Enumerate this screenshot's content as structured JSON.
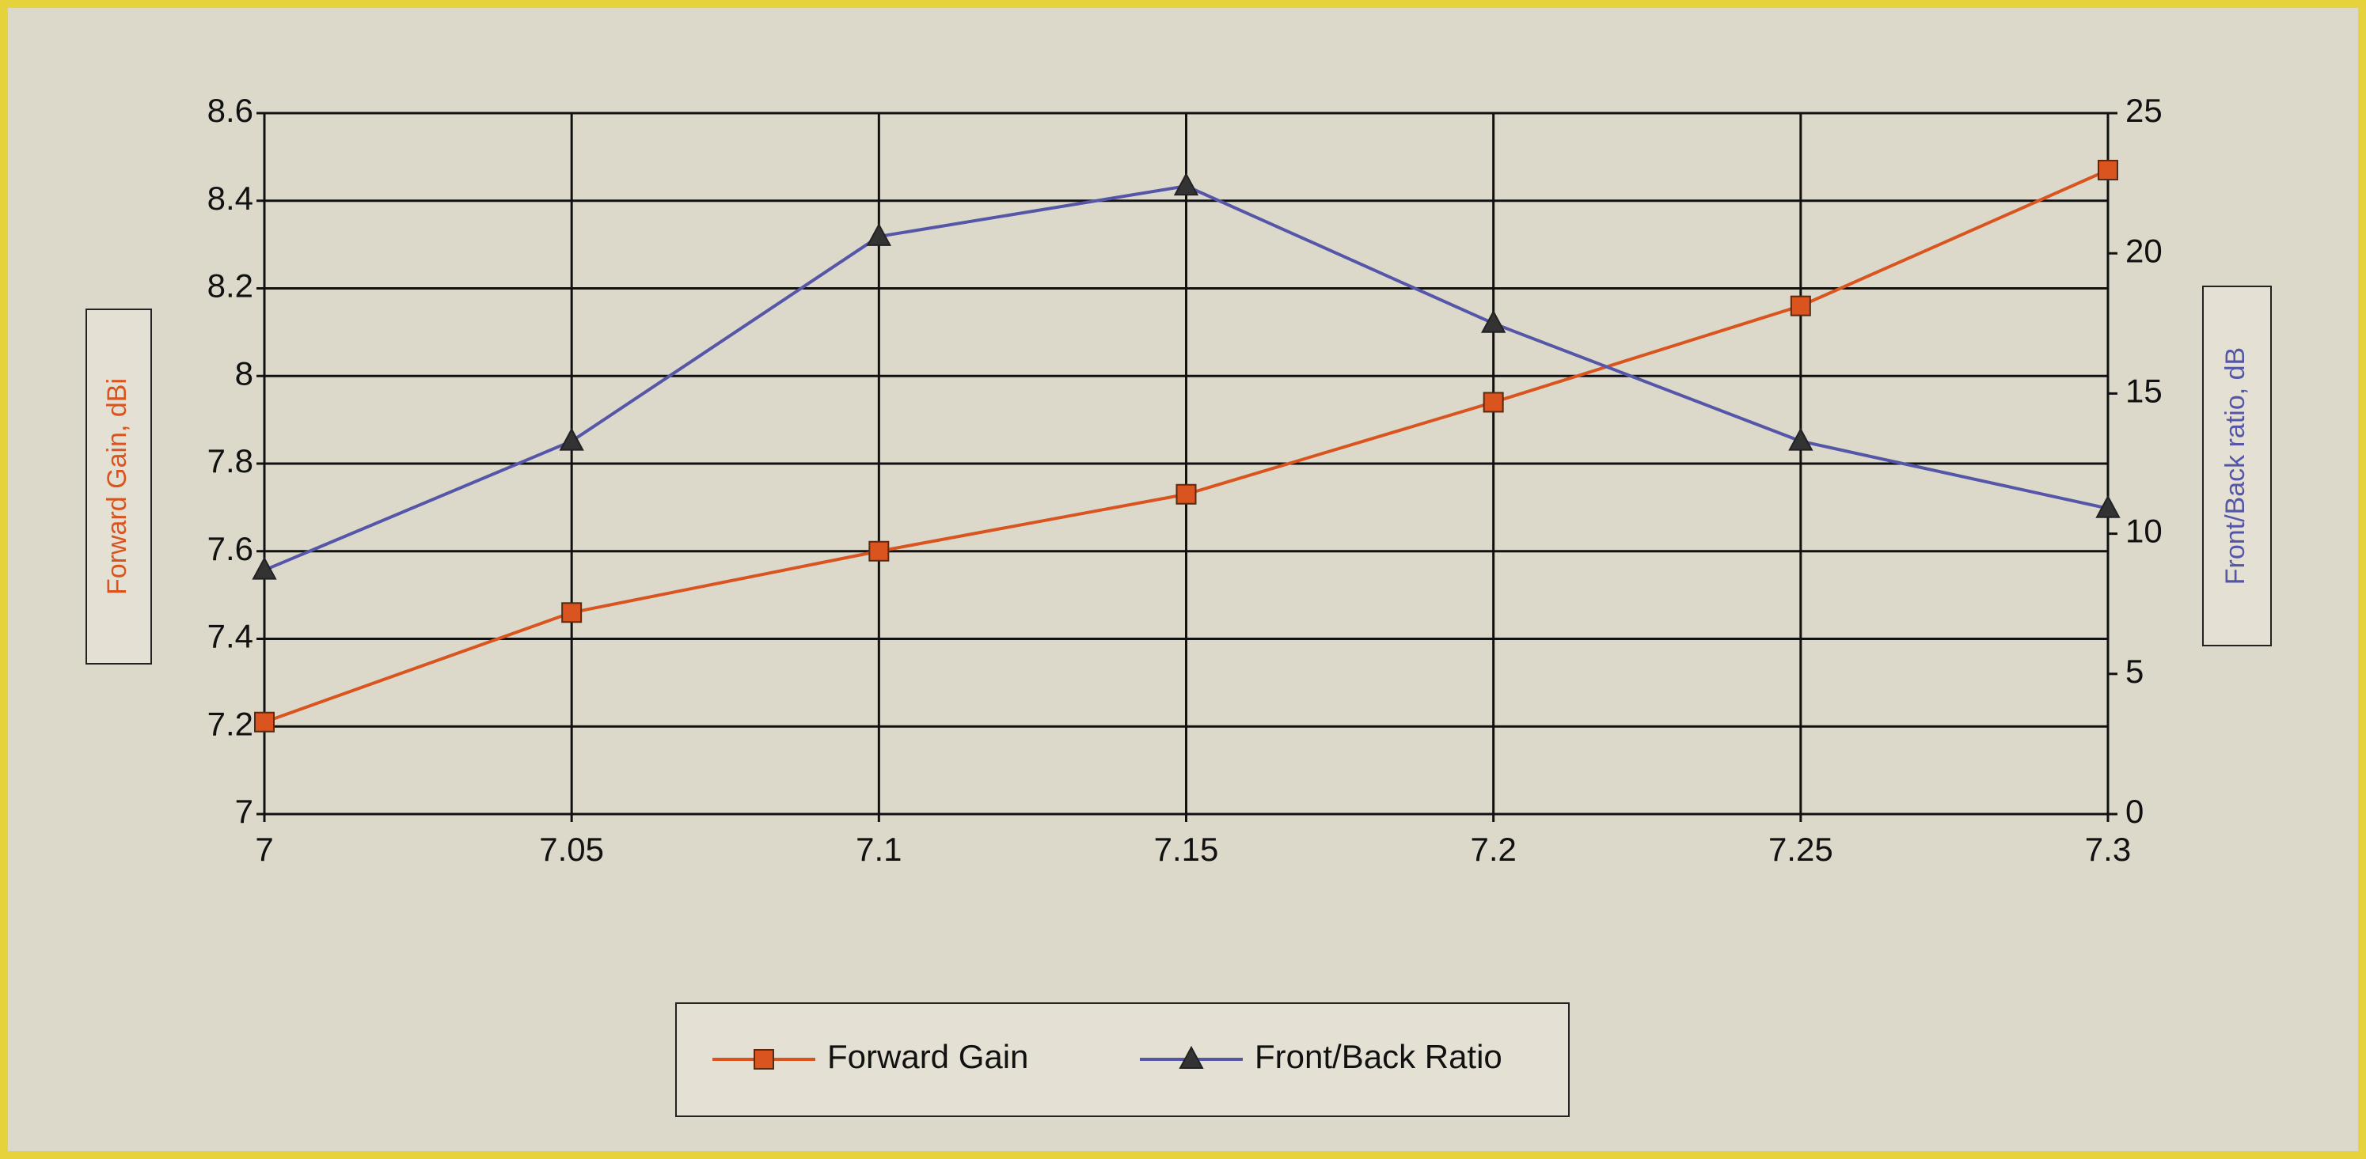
{
  "chart_data": {
    "type": "line",
    "x": [
      7,
      7.05,
      7.1,
      7.15,
      7.2,
      7.25,
      7.3
    ],
    "series": [
      {
        "name": "Forward Gain",
        "color": "#d9541e",
        "values": [
          7.21,
          7.46,
          7.6,
          7.73,
          7.94,
          8.16,
          8.47
        ]
      },
      {
        "name": "Front/Back Ratio",
        "color": "#5656a8",
        "axis": "y2",
        "values": [
          8.7,
          13.3,
          20.6,
          22.4,
          17.5,
          13.3,
          10.9
        ]
      }
    ],
    "xlim": [
      7,
      7.3
    ],
    "xticks": [
      7,
      7.05,
      7.1,
      7.15,
      7.2,
      7.25,
      7.3
    ],
    "ylim": [
      7,
      8.6
    ],
    "yticks": [
      7,
      7.2,
      7.4,
      7.6,
      7.8,
      8,
      8.2,
      8.4,
      8.6
    ],
    "y2lim": [
      0,
      25
    ],
    "y2ticks": [
      0,
      5,
      10,
      15,
      20,
      25
    ],
    "ylabel": "Forward Gain, dBi",
    "y2label": "Front/Back ratio, dB",
    "grid": true,
    "legend": "bottom"
  }
}
